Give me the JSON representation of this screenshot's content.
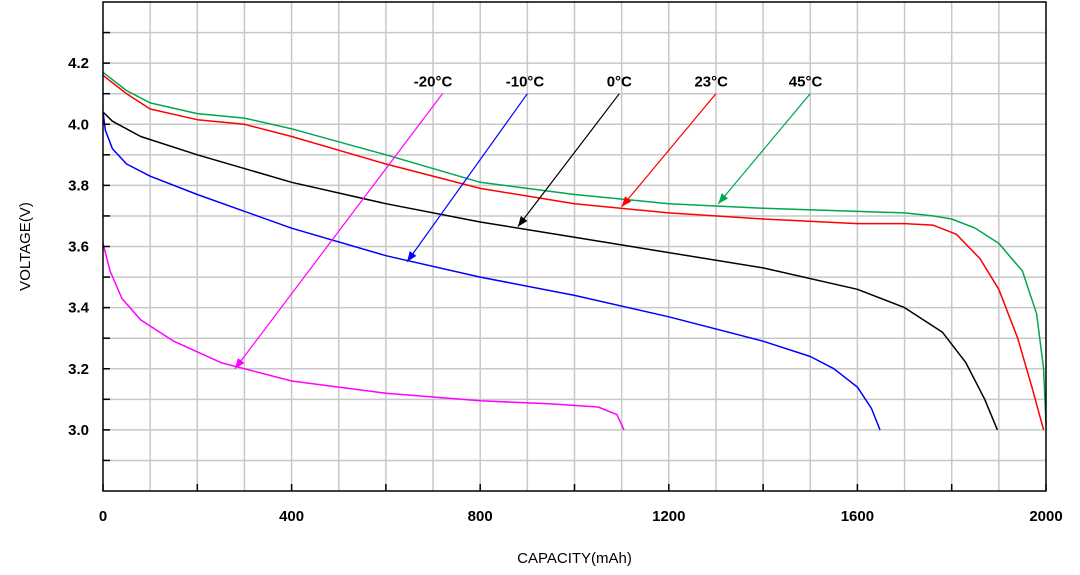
{
  "chart_data": {
    "type": "line",
    "title": "",
    "xlabel": "CAPACITY(mAh)",
    "ylabel": "VOLTAGE(V)",
    "xlim": [
      0,
      2000
    ],
    "ylim": [
      2.8,
      4.4
    ],
    "grid": true,
    "x_ticks": [
      0,
      400,
      800,
      1200,
      1600,
      2000
    ],
    "y_ticks": [
      3.0,
      3.2,
      3.4,
      3.6,
      3.8,
      4.0,
      4.2
    ],
    "x_tick_labels": [
      "0",
      "400",
      "800",
      "1200",
      "1600",
      "2000"
    ],
    "y_tick_labels": [
      "3.0",
      "3.2",
      "3.4",
      "3.6",
      "3.8",
      "4.0",
      "4.2"
    ],
    "series": [
      {
        "name": "-20°C",
        "color": "#ff00ff",
        "x": [
          0,
          15,
          40,
          80,
          150,
          250,
          400,
          600,
          800,
          950,
          1050,
          1090,
          1105
        ],
        "y": [
          3.61,
          3.52,
          3.43,
          3.36,
          3.29,
          3.22,
          3.16,
          3.12,
          3.095,
          3.085,
          3.075,
          3.05,
          3.0
        ]
      },
      {
        "name": "-10°C",
        "color": "#0000ff",
        "x": [
          0,
          5,
          20,
          50,
          100,
          200,
          400,
          600,
          800,
          1000,
          1200,
          1400,
          1500,
          1550,
          1600,
          1630,
          1648
        ],
        "y": [
          4.04,
          3.98,
          3.92,
          3.87,
          3.83,
          3.77,
          3.66,
          3.57,
          3.5,
          3.44,
          3.37,
          3.29,
          3.24,
          3.2,
          3.14,
          3.07,
          3.0
        ]
      },
      {
        "name": "0°C",
        "color": "#000000",
        "x": [
          0,
          20,
          80,
          200,
          400,
          600,
          800,
          1000,
          1200,
          1400,
          1600,
          1700,
          1780,
          1830,
          1870,
          1897
        ],
        "y": [
          4.04,
          4.01,
          3.96,
          3.9,
          3.81,
          3.74,
          3.68,
          3.63,
          3.58,
          3.53,
          3.46,
          3.4,
          3.32,
          3.22,
          3.1,
          3.0
        ]
      },
      {
        "name": "23°C",
        "color": "#ff0000",
        "x": [
          0,
          50,
          100,
          200,
          300,
          400,
          600,
          800,
          1000,
          1200,
          1400,
          1600,
          1700,
          1760,
          1810,
          1860,
          1900,
          1940,
          1970,
          1995
        ],
        "y": [
          4.16,
          4.1,
          4.05,
          4.015,
          4.0,
          3.96,
          3.87,
          3.79,
          3.74,
          3.71,
          3.69,
          3.675,
          3.675,
          3.67,
          3.64,
          3.56,
          3.46,
          3.3,
          3.14,
          3.0
        ]
      },
      {
        "name": "45°C",
        "color": "#00a651",
        "x": [
          0,
          50,
          100,
          200,
          300,
          400,
          600,
          800,
          1000,
          1200,
          1400,
          1600,
          1700,
          1760,
          1800,
          1850,
          1900,
          1950,
          1980,
          1995,
          2000
        ],
        "y": [
          4.17,
          4.11,
          4.07,
          4.035,
          4.02,
          3.985,
          3.9,
          3.81,
          3.77,
          3.74,
          3.725,
          3.715,
          3.71,
          3.7,
          3.69,
          3.66,
          3.61,
          3.52,
          3.38,
          3.2,
          3.02
        ]
      }
    ],
    "annotations": [
      {
        "text": "-20°C",
        "color": "#ff00ff",
        "label_x": 700,
        "label_y": 4.14,
        "arrow_from": [
          720,
          4.1
        ],
        "arrow_to": [
          280,
          3.2
        ]
      },
      {
        "text": "-10°C",
        "color": "#0000ff",
        "label_x": 895,
        "label_y": 4.14,
        "arrow_from": [
          900,
          4.1
        ],
        "arrow_to": [
          645,
          3.55
        ]
      },
      {
        "text": "0°C",
        "color": "#000000",
        "label_x": 1095,
        "label_y": 4.14,
        "arrow_from": [
          1095,
          4.1
        ],
        "arrow_to": [
          880,
          3.665
        ]
      },
      {
        "text": "23°C",
        "color": "#ff0000",
        "label_x": 1290,
        "label_y": 4.14,
        "arrow_from": [
          1300,
          4.1
        ],
        "arrow_to": [
          1100,
          3.73
        ]
      },
      {
        "text": "45°C",
        "color": "#00a651",
        "label_x": 1490,
        "label_y": 4.14,
        "arrow_from": [
          1500,
          4.1
        ],
        "arrow_to": [
          1305,
          3.74
        ]
      }
    ]
  }
}
